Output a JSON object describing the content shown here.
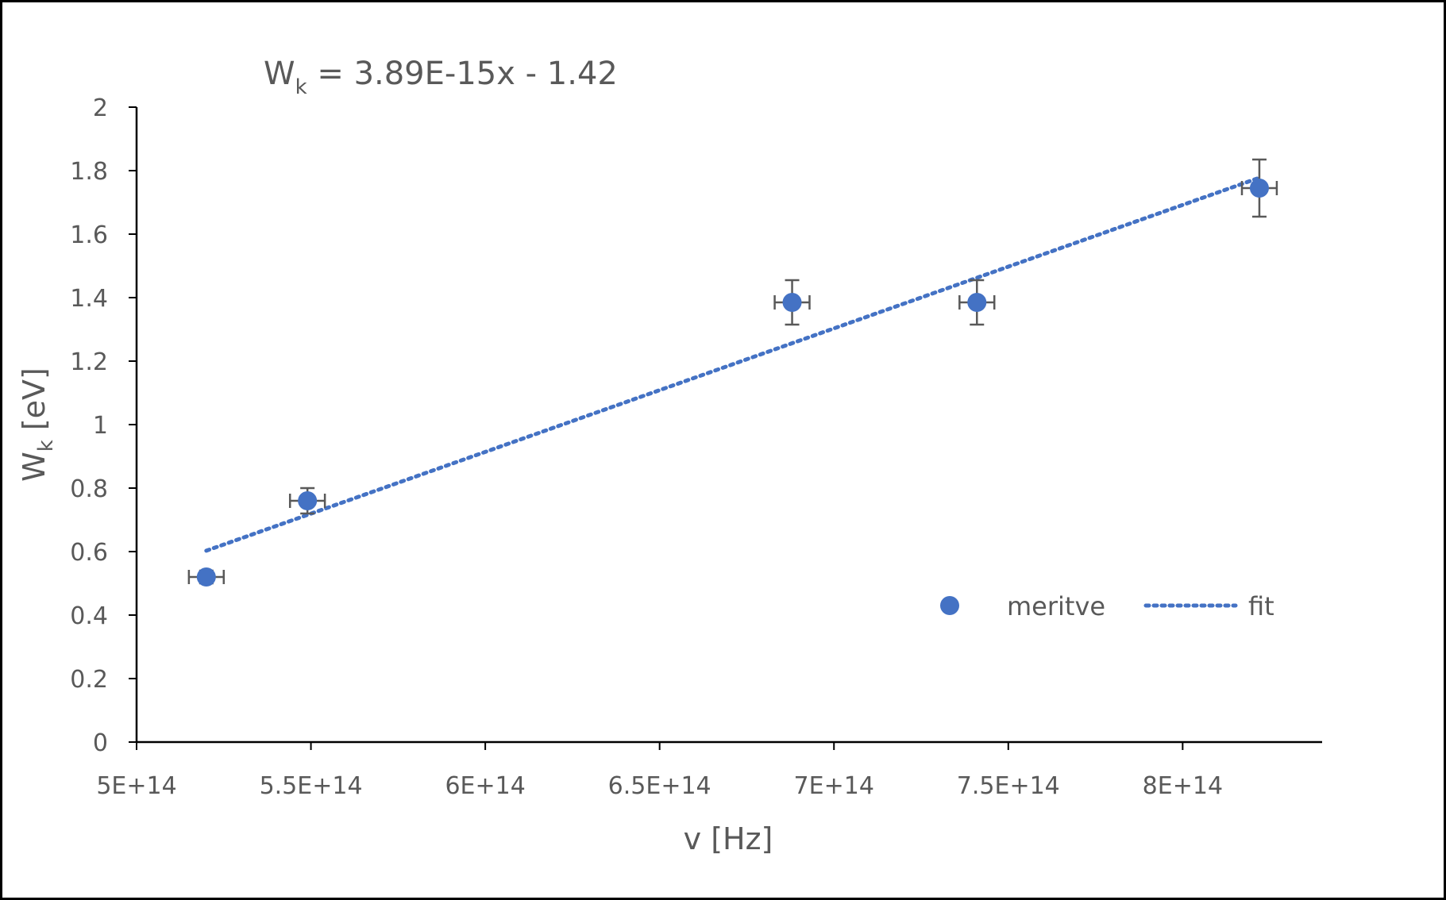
{
  "chart_data": {
    "type": "scatter",
    "equation": {
      "lhs_main": "W",
      "lhs_sub": "k",
      "rhs": " = 3.89E-15x - 1.42"
    },
    "xlabel": "v [Hz]",
    "ylabel_main": "W",
    "ylabel_sub": "k",
    "ylabel_rest": " [eV]",
    "xlim": [
      500000000000000.0,
      840000000000000.0
    ],
    "ylim": [
      0,
      2
    ],
    "x_ticks": [
      {
        "value": 500000000000000.0,
        "label": "5E+14"
      },
      {
        "value": 550000000000000.0,
        "label": "5.5E+14"
      },
      {
        "value": 600000000000000.0,
        "label": "6E+14"
      },
      {
        "value": 650000000000000.0,
        "label": "6.5E+14"
      },
      {
        "value": 700000000000000.0,
        "label": "7E+14"
      },
      {
        "value": 750000000000000.0,
        "label": "7.5E+14"
      },
      {
        "value": 800000000000000.0,
        "label": "8E+14"
      }
    ],
    "y_ticks": [
      {
        "value": 0,
        "label": "0"
      },
      {
        "value": 0.2,
        "label": "0.2"
      },
      {
        "value": 0.4,
        "label": "0.4"
      },
      {
        "value": 0.6,
        "label": "0.6"
      },
      {
        "value": 0.8,
        "label": "0.8"
      },
      {
        "value": 1,
        "label": "1"
      },
      {
        "value": 1.2,
        "label": "1.2"
      },
      {
        "value": 1.4,
        "label": "1.4"
      },
      {
        "value": 1.6,
        "label": "1.6"
      },
      {
        "value": 1.8,
        "label": "1.8"
      },
      {
        "value": 2,
        "label": "2"
      }
    ],
    "grid": false,
    "legend_position": "bottom-right",
    "series": [
      {
        "name": "meritve",
        "kind": "points",
        "color": "#4472C4",
        "points": [
          {
            "x": 520000000000000.0,
            "y": 0.52,
            "xerr": 5000000000000.0,
            "yerr": 0.02
          },
          {
            "x": 549000000000000.0,
            "y": 0.76,
            "xerr": 5000000000000.0,
            "yerr": 0.04
          },
          {
            "x": 688000000000000.0,
            "y": 1.385,
            "xerr": 5000000000000.0,
            "yerr": 0.07
          },
          {
            "x": 741000000000000.0,
            "y": 1.385,
            "xerr": 5000000000000.0,
            "yerr": 0.07
          },
          {
            "x": 822000000000000.0,
            "y": 1.745,
            "xerr": 5000000000000.0,
            "yerr": 0.09
          }
        ]
      },
      {
        "name": "fit",
        "kind": "line",
        "style": "dotted",
        "color": "#4472C4",
        "slope": 3.89e-15,
        "intercept": -1.42,
        "x_range": [
          520000000000000.0,
          822000000000000.0
        ]
      }
    ],
    "error_bar_color": "#595959"
  }
}
